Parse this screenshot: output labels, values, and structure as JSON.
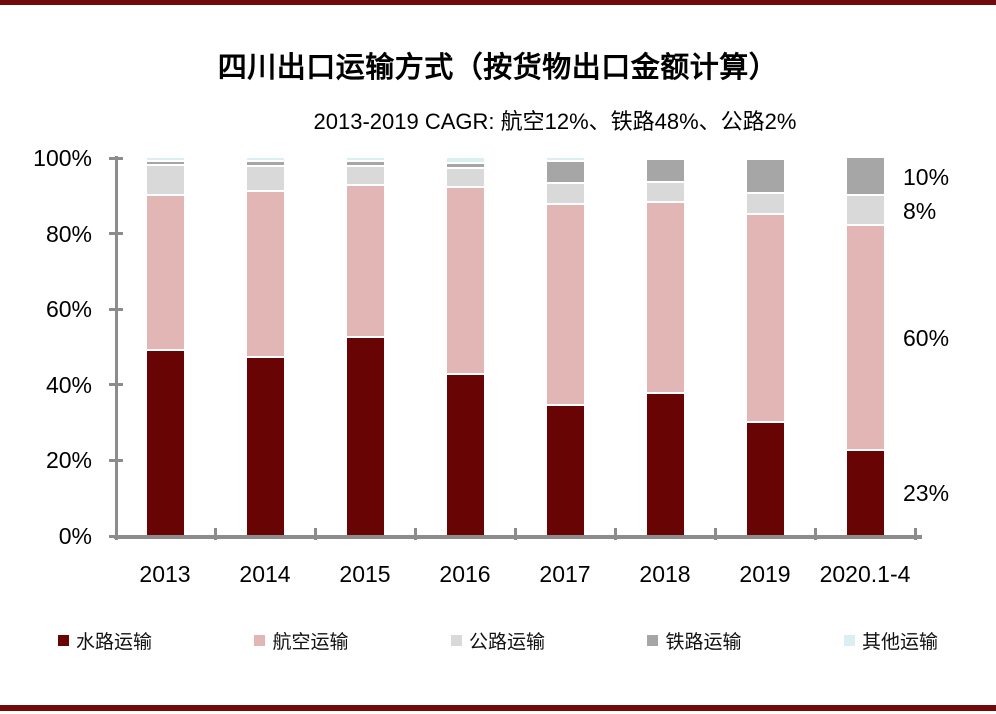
{
  "page": {
    "title": "四川出口运输方式（按货物出口金额计算）",
    "subtitle": "2013-2019 CAGR: 航空12%、铁路48%、公路2%",
    "accent_color": "#72090B",
    "axis_color": "#8C8C8C"
  },
  "chart_data": {
    "type": "bar",
    "stacked": true,
    "unit": "percent",
    "title": "四川出口运输方式（按货物出口金额计算）",
    "subtitle": "2013-2019 CAGR: 航空12%、铁路48%、公路2%",
    "categories": [
      "2013",
      "2014",
      "2015",
      "2016",
      "2017",
      "2018",
      "2019",
      "2020.1-4"
    ],
    "series": [
      {
        "name": "水路运输",
        "color": "#680404",
        "values": [
          49,
          47,
          52.5,
          42.5,
          34.5,
          37.5,
          30,
          22.5
        ]
      },
      {
        "name": "航空运输",
        "color": "#E3B6B6",
        "values": [
          41,
          44,
          40,
          49.5,
          53,
          50.5,
          55,
          59.5
        ]
      },
      {
        "name": "公路运输",
        "color": "#D9D9D9",
        "values": [
          8,
          6.5,
          5,
          5,
          5.5,
          5.5,
          5.5,
          8
        ]
      },
      {
        "name": "铁路运输",
        "color": "#A6A6A6",
        "values": [
          1,
          1.5,
          1.5,
          1.5,
          6,
          6,
          9,
          10
        ]
      },
      {
        "name": "其他运输",
        "color": "#DAEEF3",
        "values": [
          1,
          1,
          1,
          1.5,
          1,
          0.5,
          0.5,
          0
        ]
      }
    ],
    "y_axis": {
      "min": 0,
      "max": 100,
      "tick_step": 20,
      "tick_labels": [
        "0%",
        "20%",
        "40%",
        "60%",
        "80%",
        "100%"
      ]
    },
    "annotations": [
      {
        "label": "10%",
        "category": "2020.1-4",
        "series_index": 3
      },
      {
        "label": "8%",
        "category": "2020.1-4",
        "series_index": 2
      },
      {
        "label": "60%",
        "category": "2020.1-4",
        "series_index": 1
      },
      {
        "label": "23%",
        "category": "2020.1-4",
        "series_index": 0
      }
    ],
    "legend_position": "bottom",
    "grid": false
  }
}
